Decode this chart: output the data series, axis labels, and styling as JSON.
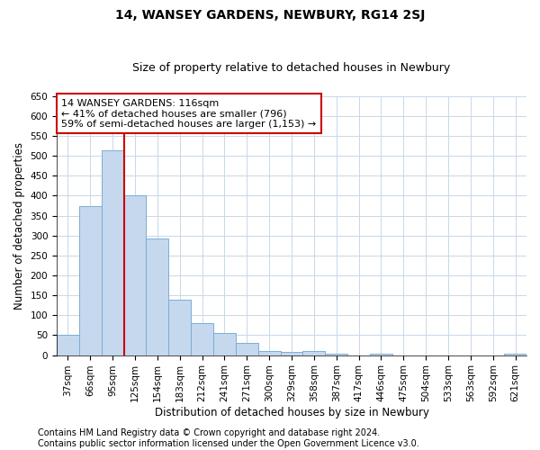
{
  "title": "14, WANSEY GARDENS, NEWBURY, RG14 2SJ",
  "subtitle": "Size of property relative to detached houses in Newbury",
  "xlabel": "Distribution of detached houses by size in Newbury",
  "ylabel": "Number of detached properties",
  "bar_labels": [
    "37sqm",
    "66sqm",
    "95sqm",
    "125sqm",
    "154sqm",
    "183sqm",
    "212sqm",
    "241sqm",
    "271sqm",
    "300sqm",
    "329sqm",
    "358sqm",
    "387sqm",
    "417sqm",
    "446sqm",
    "475sqm",
    "504sqm",
    "533sqm",
    "563sqm",
    "592sqm",
    "621sqm"
  ],
  "bar_values": [
    50,
    375,
    515,
    400,
    293,
    140,
    80,
    55,
    30,
    11,
    7,
    11,
    4,
    0,
    4,
    0,
    0,
    0,
    0,
    0,
    4
  ],
  "bar_color": "#c5d8ee",
  "bar_edgecolor": "#7aaed4",
  "vline_x": 2.5,
  "vline_color": "#cc0000",
  "ylim": [
    0,
    650
  ],
  "yticks": [
    0,
    50,
    100,
    150,
    200,
    250,
    300,
    350,
    400,
    450,
    500,
    550,
    600,
    650
  ],
  "annotation_line1": "14 WANSEY GARDENS: 116sqm",
  "annotation_line2": "← 41% of detached houses are smaller (796)",
  "annotation_line3": "59% of semi-detached houses are larger (1,153) →",
  "annotation_box_color": "#ffffff",
  "annotation_box_edgecolor": "#cc0000",
  "footer_line1": "Contains HM Land Registry data © Crown copyright and database right 2024.",
  "footer_line2": "Contains public sector information licensed under the Open Government Licence v3.0.",
  "background_color": "#ffffff",
  "grid_color": "#c8d8e8",
  "title_fontsize": 10,
  "subtitle_fontsize": 9,
  "axis_label_fontsize": 8.5,
  "tick_fontsize": 7.5,
  "annotation_fontsize": 8,
  "footer_fontsize": 7
}
